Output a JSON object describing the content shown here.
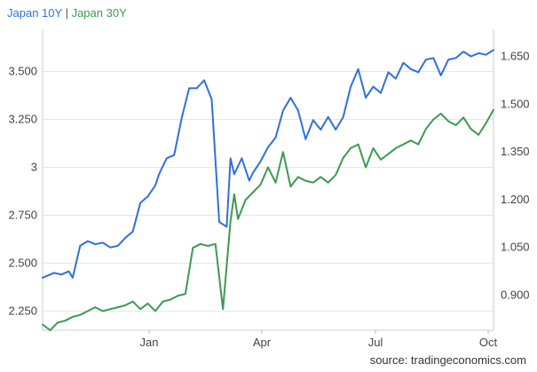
{
  "chart_data": {
    "type": "line",
    "legend_position": "top-left",
    "legend_separator": "|",
    "grid": "horizontal",
    "x_axis": {
      "ticks": [
        "Jan",
        "Apr",
        "Jul",
        "Oct"
      ],
      "range_months": [
        "Oct",
        "Oct"
      ]
    },
    "y_left": {
      "label": "",
      "range": [
        2.15,
        3.72
      ],
      "ticks": [
        "2.250",
        "2.500",
        "2.750",
        "3",
        "3.250",
        "3.500"
      ],
      "tick_values": [
        2.25,
        2.5,
        2.75,
        3.0,
        3.25,
        3.5
      ]
    },
    "y_right": {
      "label": "",
      "range": [
        0.79,
        1.735
      ],
      "ticks": [
        "0.900",
        "1.050",
        "1.200",
        "1.350",
        "1.500",
        "1.650"
      ],
      "tick_values": [
        0.9,
        1.05,
        1.2,
        1.35,
        1.5,
        1.65
      ]
    },
    "series": [
      {
        "name": "Japan 10Y",
        "axis": "right",
        "color": "#2f6fe4",
        "x": [
          0,
          0.3,
          0.5,
          0.7,
          0.8,
          1.0,
          1.2,
          1.4,
          1.6,
          1.8,
          2.0,
          2.2,
          2.4,
          2.6,
          2.8,
          3.0,
          3.1,
          3.3,
          3.5,
          3.7,
          3.9,
          4.1,
          4.3,
          4.5,
          4.7,
          4.9,
          5.0,
          5.1,
          5.2,
          5.3,
          5.5,
          5.6,
          5.8,
          6.0,
          6.2,
          6.4,
          6.6,
          6.8,
          7.0,
          7.2,
          7.4,
          7.6,
          7.8,
          8.0,
          8.2,
          8.4,
          8.6,
          8.8,
          9.0,
          9.2,
          9.4,
          9.6,
          9.8,
          10.0,
          10.2,
          10.4,
          10.6,
          10.8,
          11.0,
          11.2,
          11.4,
          11.6,
          11.8,
          12.0
        ],
        "values": [
          0.955,
          0.97,
          0.965,
          0.975,
          0.955,
          1.055,
          1.07,
          1.06,
          1.065,
          1.05,
          1.055,
          1.08,
          1.1,
          1.19,
          1.21,
          1.245,
          1.28,
          1.33,
          1.34,
          1.455,
          1.55,
          1.55,
          1.575,
          1.515,
          1.13,
          1.115,
          1.33,
          1.28,
          1.305,
          1.33,
          1.26,
          1.285,
          1.32,
          1.365,
          1.395,
          1.48,
          1.52,
          1.48,
          1.39,
          1.45,
          1.42,
          1.46,
          1.42,
          1.46,
          1.555,
          1.61,
          1.52,
          1.555,
          1.535,
          1.6,
          1.58,
          1.63,
          1.61,
          1.6,
          1.64,
          1.645,
          1.59,
          1.64,
          1.645,
          1.665,
          1.65,
          1.66,
          1.655,
          1.67
        ]
      },
      {
        "name": "Japan 30Y",
        "axis": "left",
        "color": "#3d9a50",
        "x": [
          0,
          0.2,
          0.4,
          0.6,
          0.8,
          1.0,
          1.2,
          1.4,
          1.6,
          1.8,
          2.0,
          2.2,
          2.4,
          2.6,
          2.8,
          3.0,
          3.2,
          3.4,
          3.6,
          3.8,
          4.0,
          4.2,
          4.4,
          4.6,
          4.8,
          5.0,
          5.1,
          5.2,
          5.4,
          5.6,
          5.8,
          6.0,
          6.2,
          6.4,
          6.6,
          6.8,
          7.0,
          7.2,
          7.4,
          7.6,
          7.8,
          8.0,
          8.2,
          8.4,
          8.6,
          8.8,
          9.0,
          9.2,
          9.4,
          9.6,
          9.8,
          10.0,
          10.2,
          10.4,
          10.6,
          10.8,
          11.0,
          11.2,
          11.4,
          11.6,
          11.8,
          12.0
        ],
        "values": [
          2.18,
          2.15,
          2.19,
          2.2,
          2.22,
          2.23,
          2.25,
          2.27,
          2.25,
          2.26,
          2.27,
          2.28,
          2.3,
          2.26,
          2.29,
          2.25,
          2.3,
          2.31,
          2.33,
          2.34,
          2.58,
          2.6,
          2.59,
          2.6,
          2.26,
          2.72,
          2.86,
          2.73,
          2.83,
          2.87,
          2.91,
          3.0,
          2.92,
          3.08,
          2.9,
          2.95,
          2.93,
          2.92,
          2.95,
          2.92,
          2.96,
          3.05,
          3.1,
          3.12,
          3.0,
          3.1,
          3.04,
          3.07,
          3.1,
          3.12,
          3.14,
          3.12,
          3.2,
          3.25,
          3.28,
          3.24,
          3.22,
          3.26,
          3.2,
          3.17,
          3.23,
          3.3
        ]
      }
    ]
  },
  "source_text": "source: tradingeconomics.com"
}
